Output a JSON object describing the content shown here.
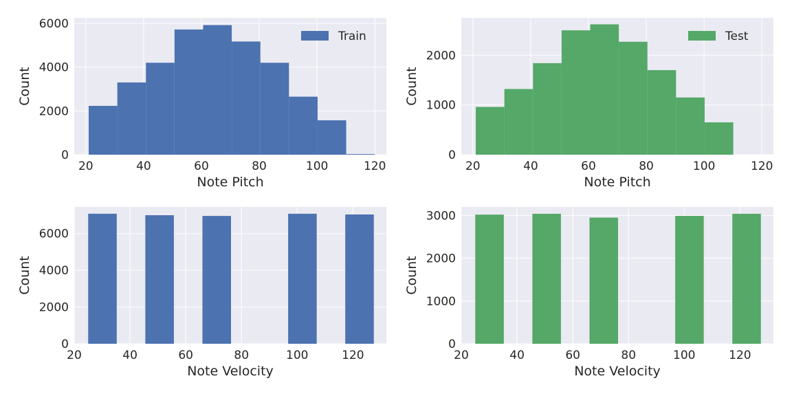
{
  "chart_data": [
    {
      "type": "bar",
      "xlabel": "Note Pitch",
      "ylabel": "Count",
      "xlim": [
        16,
        124
      ],
      "ylim": [
        0,
        6250
      ],
      "xticks": [
        "20",
        "40",
        "60",
        "80",
        "100",
        "120"
      ],
      "yticks": [
        "0",
        "2000",
        "4000",
        "6000"
      ],
      "bin_edges": [
        21,
        30.9,
        40.8,
        50.7,
        60.6,
        70.5,
        80.4,
        90.3,
        100.2,
        110.1,
        120
      ],
      "series": [
        {
          "name": "Train",
          "values": [
            2230,
            3300,
            4200,
            5720,
            5920,
            5170,
            4200,
            2650,
            1570,
            30
          ]
        }
      ],
      "color": "#4c72b0",
      "legend": "top-right",
      "grid": true
    },
    {
      "type": "bar",
      "xlabel": "Note Pitch",
      "ylabel": "Count",
      "xlim": [
        16,
        124
      ],
      "ylim": [
        0,
        2750
      ],
      "xticks": [
        "20",
        "40",
        "60",
        "80",
        "100",
        "120"
      ],
      "yticks": [
        "0",
        "1000",
        "2000"
      ],
      "bin_edges": [
        21,
        30.9,
        40.8,
        50.7,
        60.6,
        70.5,
        80.4,
        90.3,
        100.2,
        110.1,
        120
      ],
      "series": [
        {
          "name": "Test",
          "values": [
            960,
            1320,
            1840,
            2500,
            2620,
            2270,
            1700,
            1150,
            650,
            0
          ]
        }
      ],
      "color": "#55a868",
      "legend": "top-right",
      "grid": true
    },
    {
      "type": "bar",
      "xlabel": "Note Velocity",
      "ylabel": "Count",
      "xlim": [
        20,
        132
      ],
      "ylim": [
        0,
        7450
      ],
      "xticks": [
        "20",
        "40",
        "60",
        "80",
        "100",
        "120"
      ],
      "yticks": [
        "0",
        "2000",
        "4000",
        "6000"
      ],
      "bin_edges": [
        25,
        35.25,
        45.5,
        55.75,
        66,
        76.25,
        86.5,
        96.75,
        107,
        117.25,
        127.5
      ],
      "series": [
        {
          "values": [
            7080,
            0,
            7000,
            0,
            6960,
            0,
            0,
            7080,
            0,
            7040
          ]
        }
      ],
      "color": "#4c72b0",
      "grid": true
    },
    {
      "type": "bar",
      "xlabel": "Note Velocity",
      "ylabel": "Count",
      "xlim": [
        20,
        132
      ],
      "ylim": [
        0,
        3200
      ],
      "xticks": [
        "20",
        "40",
        "60",
        "80",
        "100",
        "120"
      ],
      "yticks": [
        "0",
        "1000",
        "2000",
        "3000"
      ],
      "bin_edges": [
        25,
        35.25,
        45.5,
        55.75,
        66,
        76.25,
        86.5,
        96.75,
        107,
        117.25,
        127.5
      ],
      "series": [
        {
          "values": [
            3020,
            0,
            3040,
            0,
            2950,
            0,
            0,
            2990,
            0,
            3040
          ]
        }
      ],
      "color": "#55a868",
      "grid": true
    }
  ]
}
